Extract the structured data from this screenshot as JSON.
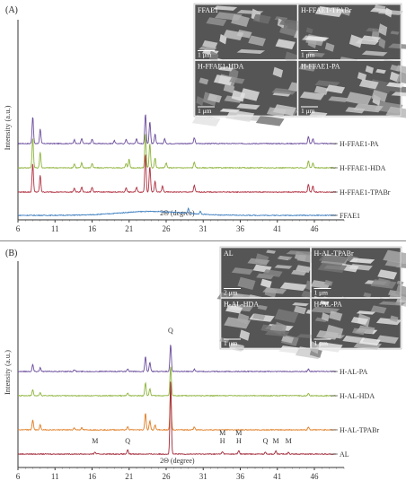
{
  "chart_data": [
    {
      "type": "line",
      "panel_label": "(A)",
      "xlabel": "2Θ (degree)",
      "ylabel": "Intensity (a.u.)",
      "xlim": [
        6,
        50
      ],
      "xticks": [
        "6",
        "11",
        "16",
        "21",
        "26",
        "31",
        "36",
        "41",
        "46"
      ],
      "grid": false,
      "legend": "labels at right end of each trace",
      "series": [
        {
          "name": "H-FFAE1-PA",
          "color": "#6a4c9c",
          "peaks": [
            [
              8.0,
              55
            ],
            [
              9.0,
              30
            ],
            [
              13.6,
              8
            ],
            [
              14.6,
              10
            ],
            [
              16.0,
              9
            ],
            [
              19.0,
              6
            ],
            [
              20.6,
              9
            ],
            [
              22.0,
              10
            ],
            [
              23.2,
              60
            ],
            [
              23.8,
              45
            ],
            [
              24.5,
              20
            ],
            [
              25.8,
              10
            ],
            [
              29.8,
              12
            ],
            [
              45.2,
              14
            ],
            [
              45.8,
              10
            ]
          ]
        },
        {
          "name": "H-FFAE1-HDA",
          "color": "#8db33a",
          "peaks": [
            [
              8.0,
              60
            ],
            [
              9.0,
              32
            ],
            [
              13.6,
              8
            ],
            [
              14.6,
              10
            ],
            [
              16.0,
              9
            ],
            [
              20.6,
              9
            ],
            [
              21.0,
              18
            ],
            [
              23.2,
              70
            ],
            [
              23.8,
              50
            ],
            [
              24.5,
              20
            ],
            [
              26.0,
              10
            ],
            [
              29.8,
              12
            ],
            [
              45.2,
              14
            ],
            [
              45.8,
              10
            ]
          ]
        },
        {
          "name": "H-FFAE1-TPABr",
          "color": "#b03040",
          "peaks": [
            [
              8.0,
              58
            ],
            [
              9.0,
              34
            ],
            [
              13.6,
              8
            ],
            [
              14.6,
              10
            ],
            [
              16.0,
              10
            ],
            [
              20.6,
              9
            ],
            [
              22.0,
              10
            ],
            [
              23.2,
              78
            ],
            [
              23.8,
              52
            ],
            [
              24.5,
              22
            ],
            [
              25.5,
              12
            ],
            [
              29.8,
              14
            ],
            [
              45.2,
              16
            ],
            [
              45.8,
              12
            ]
          ]
        },
        {
          "name": "FFAE1",
          "color": "#3f7fc0",
          "peaks": [
            [
              29.0,
              10
            ],
            [
              30.6,
              6
            ]
          ],
          "hump": {
            "center": 24.0,
            "height": 8,
            "width": 6
          }
        }
      ],
      "inset_micrographs": [
        {
          "label": "FFAE1",
          "scale": "1 μm"
        },
        {
          "label": "H-FFAE1-TPABr",
          "scale": "1 μm"
        },
        {
          "label": "H-FFAE1-HDA",
          "scale": "1 μm"
        },
        {
          "label": "H-FFAE1-PA",
          "scale": "1 μm"
        }
      ]
    },
    {
      "type": "line",
      "panel_label": "(B)",
      "xlabel": "2Θ (degree)",
      "ylabel": "Intensity (a.u.)",
      "xlim": [
        6,
        50
      ],
      "xticks": [
        "6",
        "11",
        "16",
        "21",
        "26",
        "31",
        "36",
        "41",
        "46"
      ],
      "grid": false,
      "legend": "labels at right end of each trace",
      "series": [
        {
          "name": "H-AL-PA",
          "color": "#6a4c9c",
          "peaks": [
            [
              8.0,
              14
            ],
            [
              9.0,
              8
            ],
            [
              13.6,
              4
            ],
            [
              20.8,
              5
            ],
            [
              23.2,
              30
            ],
            [
              23.8,
              18
            ],
            [
              26.6,
              55
            ],
            [
              29.8,
              5
            ],
            [
              45.2,
              5
            ]
          ]
        },
        {
          "name": "H-AL-HDA",
          "color": "#8db33a",
          "peaks": [
            [
              8.0,
              12
            ],
            [
              9.0,
              6
            ],
            [
              20.8,
              5
            ],
            [
              23.2,
              26
            ],
            [
              23.8,
              14
            ],
            [
              26.6,
              60
            ],
            [
              45.2,
              5
            ]
          ]
        },
        {
          "name": "H-AL-TPABr",
          "color": "#e07b20",
          "peaks": [
            [
              8.0,
              20
            ],
            [
              9.0,
              10
            ],
            [
              13.6,
              4
            ],
            [
              14.6,
              4
            ],
            [
              20.8,
              6
            ],
            [
              23.2,
              34
            ],
            [
              23.8,
              18
            ],
            [
              24.5,
              10
            ],
            [
              26.6,
              80
            ],
            [
              29.8,
              6
            ],
            [
              45.2,
              6
            ]
          ]
        },
        {
          "name": "AL",
          "color": "#a02838",
          "peaks": [
            [
              16.4,
              4
            ],
            [
              20.8,
              8
            ],
            [
              26.6,
              150
            ],
            [
              33.6,
              5
            ],
            [
              35.8,
              7
            ],
            [
              39.4,
              4
            ],
            [
              40.8,
              6
            ],
            [
              42.5,
              4
            ]
          ]
        }
      ],
      "phase_labels": [
        {
          "x": 16.4,
          "text": "M"
        },
        {
          "x": 20.8,
          "text": "Q"
        },
        {
          "x": 26.6,
          "text": "Q"
        },
        {
          "x": 33.6,
          "text": "M"
        },
        {
          "x": 33.6,
          "text": "H"
        },
        {
          "x": 35.8,
          "text": "M"
        },
        {
          "x": 35.8,
          "text": "H"
        },
        {
          "x": 39.4,
          "text": "Q"
        },
        {
          "x": 40.8,
          "text": "M"
        },
        {
          "x": 42.5,
          "text": "M"
        }
      ],
      "inset_micrographs": [
        {
          "label": "AL",
          "scale": "2 μm"
        },
        {
          "label": "H-AL-TPABr",
          "scale": "1 μm"
        },
        {
          "label": "H-AL-HDA",
          "scale": "1 μm"
        },
        {
          "label": "H-AL-PA",
          "scale": "1 μm"
        }
      ]
    }
  ]
}
